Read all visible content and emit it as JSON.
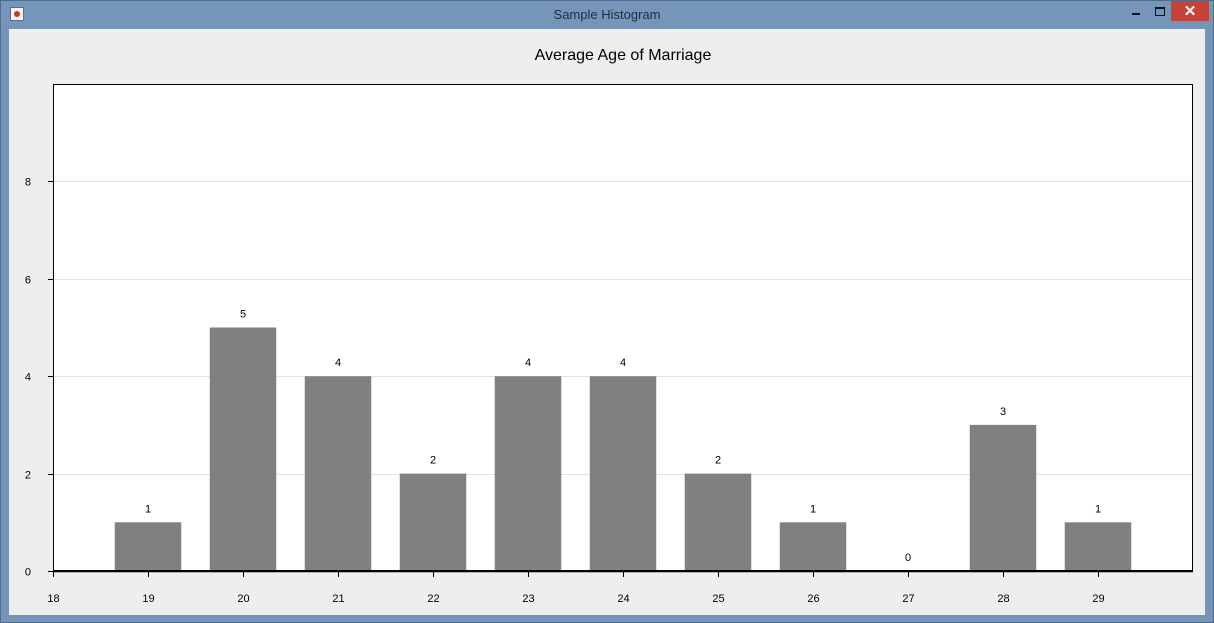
{
  "window": {
    "title": "Sample Histogram",
    "close_glyph": "✕"
  },
  "chart_data": {
    "type": "bar",
    "title": "Average Age of Marriage",
    "xlabel": "",
    "ylabel": "",
    "x_ticks": [
      "18",
      "19",
      "20",
      "21",
      "22",
      "23",
      "24",
      "25",
      "26",
      "27",
      "28",
      "29"
    ],
    "categories": [
      "19",
      "20",
      "21",
      "22",
      "23",
      "24",
      "25",
      "26",
      "27",
      "28",
      "29"
    ],
    "values": [
      1,
      5,
      4,
      2,
      4,
      4,
      2,
      1,
      0,
      3,
      1
    ],
    "y_ticks": [
      0,
      2,
      4,
      6,
      8
    ],
    "ylim": [
      0,
      10
    ],
    "xlim": [
      18,
      30
    ],
    "grid": "horizontal",
    "bar_color": "#808080",
    "show_value_labels": true
  }
}
